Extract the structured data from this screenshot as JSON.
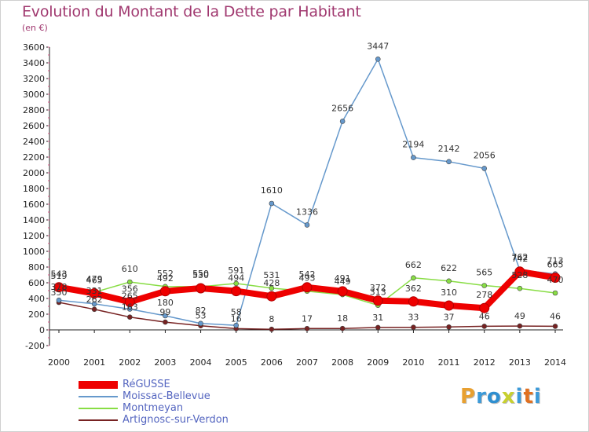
{
  "title": "Evolution du Montant de la Dette par Habitant",
  "unit": "(en €)",
  "logo": {
    "text": "Proxiti",
    "colors": [
      "#e8a030",
      "#3c9ad8",
      "#2f8fd0",
      "#c8d030",
      "#3c9ad8",
      "#e07020",
      "#3c9ad8"
    ]
  },
  "chart_data": {
    "type": "line",
    "x": [
      "2000",
      "2001",
      "2002",
      "2003",
      "2004",
      "2005",
      "2006",
      "2007",
      "2008",
      "2009",
      "2010",
      "2011",
      "2012",
      "2013",
      "2014"
    ],
    "ylim": [
      -200,
      3600
    ],
    "yticks": [
      -200,
      0,
      200,
      400,
      600,
      800,
      1000,
      1200,
      1400,
      1600,
      1800,
      2000,
      2200,
      2400,
      2600,
      2800,
      3000,
      3200,
      3400,
      3600
    ],
    "grid": false,
    "legend": "bottom-left",
    "series": [
      {
        "name": "RéGUSSE",
        "color": "#ee0000",
        "values": [
          543,
          465,
          356,
          492,
          530,
          494,
          428,
          542,
          491,
          372,
          362,
          310,
          278,
          742,
          665
        ]
      },
      {
        "name": "Moissac-Bellevue",
        "color": "#6699cc",
        "values": [
          378,
          331,
          265,
          180,
          82,
          58,
          1610,
          1336,
          2656,
          3447,
          2194,
          2142,
          2056,
          762,
          713
        ]
      },
      {
        "name": "Montmeyan",
        "color": "#88dd44",
        "values": [
          519,
          479,
          610,
          552,
          550,
          591,
          531,
          493,
          449,
          313,
          662,
          622,
          565,
          528,
          470
        ]
      },
      {
        "name": "Artignosc-sur-Verdon",
        "color": "#772222",
        "values": [
          350,
          262,
          163,
          99,
          53,
          16,
          8,
          17,
          18,
          31,
          33,
          37,
          46,
          49,
          46
        ]
      }
    ],
    "data_labels": [
      [
        "543",
        "465",
        "356",
        "492",
        "530",
        "494",
        "428",
        "542",
        "491",
        "372",
        "362",
        "310",
        "278",
        "742",
        "665"
      ],
      [
        "378",
        "331",
        "265",
        "180",
        "82",
        "58",
        "1610",
        "1336",
        "2656",
        "3447",
        "2194",
        "2142",
        "2056",
        "762",
        "713"
      ],
      [
        "519",
        "479",
        "610",
        "552",
        "550",
        "591",
        "531",
        "493",
        "449",
        "313",
        "662",
        "622",
        "565",
        "528",
        "470"
      ],
      [
        "350",
        "262",
        "163",
        "99",
        "53",
        "16",
        "8",
        "17",
        "18",
        "31",
        "33",
        "37",
        "46",
        "49",
        "46"
      ]
    ]
  }
}
